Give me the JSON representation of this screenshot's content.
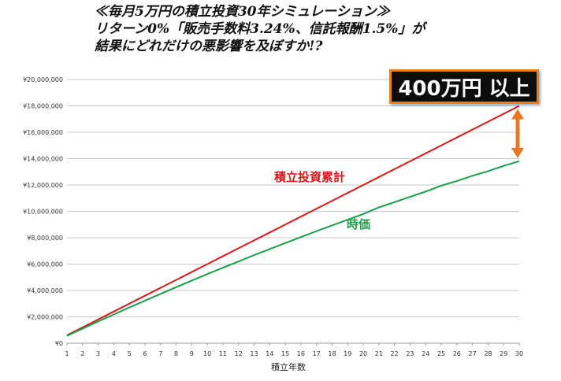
{
  "title_lines": [
    "≪毎月5万円の積立投資30年シミュレーション≫",
    "リターン0%「販売手数料3.24%、信託報酬1.5%」が",
    "結果にどれだけの悪影響を及ぼすか!?"
  ],
  "callout": {
    "text": "400万円 以上",
    "bg_color": "#0d0d0d",
    "border_color": "#f07d17"
  },
  "arrow_color": "#e87722",
  "chart_data": {
    "type": "line",
    "title": "",
    "xlabel": "積立年数",
    "ylabel": "",
    "x": [
      1,
      2,
      3,
      4,
      5,
      6,
      7,
      8,
      9,
      10,
      11,
      12,
      13,
      14,
      15,
      16,
      17,
      18,
      19,
      20,
      21,
      22,
      23,
      24,
      25,
      26,
      27,
      28,
      29,
      30
    ],
    "xlim": [
      1,
      30
    ],
    "ylim": [
      0,
      20000000
    ],
    "yticks": [
      0,
      2000000,
      4000000,
      6000000,
      8000000,
      10000000,
      12000000,
      14000000,
      16000000,
      18000000,
      20000000
    ],
    "ytick_labels": [
      "¥0",
      "¥2,000,000",
      "¥4,000,000",
      "¥6,000,000",
      "¥8,000,000",
      "¥10,000,000",
      "¥12,000,000",
      "¥14,000,000",
      "¥16,000,000",
      "¥18,000,000",
      "¥20,000,000"
    ],
    "grid": true,
    "series": [
      {
        "name": "積立投資累計",
        "color": "#d7191c",
        "values": [
          600000,
          1200000,
          1800000,
          2400000,
          3000000,
          3600000,
          4200000,
          4800000,
          5400000,
          6000000,
          6600000,
          7200000,
          7800000,
          8400000,
          9000000,
          9600000,
          10200000,
          10800000,
          11400000,
          12000000,
          12600000,
          13200000,
          13800000,
          14400000,
          15000000,
          15600000,
          16200000,
          16800000,
          17400000,
          18000000
        ]
      },
      {
        "name": "時価",
        "color": "#1a9e4a",
        "values": [
          560000,
          1110000,
          1650000,
          2180000,
          2710000,
          3230000,
          3740000,
          4250000,
          4750000,
          5240000,
          5730000,
          6200000,
          6680000,
          7140000,
          7600000,
          8050000,
          8500000,
          8940000,
          9370000,
          9800000,
          10300000,
          10700000,
          11100000,
          11500000,
          11950000,
          12300000,
          12700000,
          13050000,
          13450000,
          13800000
        ]
      }
    ]
  }
}
